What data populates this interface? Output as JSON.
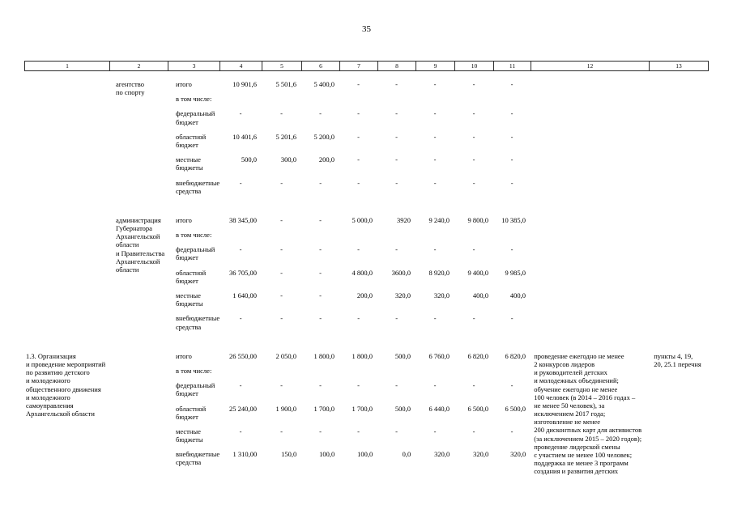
{
  "page": {
    "number": "35"
  },
  "table": {
    "columns": [
      "1",
      "2",
      "3",
      "4",
      "5",
      "6",
      "7",
      "8",
      "9",
      "10",
      "11",
      "12",
      "13"
    ],
    "groups": [
      {
        "activity": "",
        "executor": "агентство\nпо спорту",
        "indicators": "",
        "reference": "",
        "rows": [
          {
            "label": "итого",
            "values": [
              "10 901,6",
              "5 501,6",
              "5 400,0",
              "-",
              "-",
              "-",
              "-",
              "-"
            ]
          },
          {
            "label": "в том числе:",
            "values": [
              "",
              "",
              "",
              "",
              "",
              "",
              "",
              ""
            ]
          },
          {
            "label": "федеральный\nбюджет",
            "values": [
              "-",
              "-",
              "-",
              "-",
              "-",
              "-",
              "-",
              "-"
            ]
          },
          {
            "label": "областной\nбюджет",
            "values": [
              "10 401,6",
              "5 201,6",
              "5 200,0",
              "-",
              "-",
              "-",
              "-",
              "-"
            ]
          },
          {
            "label": "местные\nбюджеты",
            "values": [
              "500,0",
              "300,0",
              "200,0",
              "-",
              "-",
              "-",
              "-",
              "-"
            ]
          },
          {
            "label": "внебюджетные\nсредства",
            "values": [
              "-",
              "-",
              "-",
              "-",
              "-",
              "-",
              "-",
              "-"
            ]
          }
        ]
      },
      {
        "activity": "",
        "executor": "администрация\nГубернатора\nАрхангельской\nобласти\nи Правительства\nАрхангельской\nобласти",
        "indicators": "",
        "reference": "",
        "rows": [
          {
            "label": "итого",
            "values": [
              "38 345,00",
              "-",
              "-",
              "5 000,0",
              "3920",
              "9 240,0",
              "9 800,0",
              "10 385,0"
            ]
          },
          {
            "label": "в том числе:",
            "values": [
              "",
              "",
              "",
              "",
              "",
              "",
              "",
              ""
            ]
          },
          {
            "label": "федеральный\nбюджет",
            "values": [
              "-",
              "-",
              "-",
              "-",
              "-",
              "-",
              "-",
              "-"
            ]
          },
          {
            "label": "областной\nбюджет",
            "values": [
              "36 705,00",
              "-",
              "-",
              "4 800,0",
              "3600,0",
              "8 920,0",
              "9 400,0",
              "9 985,0"
            ]
          },
          {
            "label": "местные\nбюджеты",
            "values": [
              "1 640,00",
              "-",
              "-",
              "200,0",
              "320,0",
              "320,0",
              "400,0",
              "400,0"
            ]
          },
          {
            "label": "внебюджетные\nсредства",
            "values": [
              "-",
              "-",
              "-",
              "-",
              "-",
              "-",
              "-",
              "-"
            ]
          }
        ]
      },
      {
        "activity": "1.3.  Организация\nи проведение мероприятий\nпо развитию детского\nи молодежного\nобщественного движения\nи молодежного\nсамоуправления\nАрхангельской области",
        "executor": "",
        "indicators": "проведение ежегодно не менее\n2 конкурсов лидеров\nи руководителей детских\nи молодежных объединений;\nобучение ежегодно не менее\n100 человек (в 2014 – 2016 годах –\nне менее 50 человек), за\nисключением 2017 года;\nизготовление не менее\n200 дисконтных карт для активистов\n(за исключением 2015 – 2020 годов);\nпроведение лидерской смены\nс участием не менее 100 человек;\nподдержка не менее 3 программ\nсоздания и развития детских",
        "reference": "пункты 4, 19,\n20, 25.1 перечня",
        "rows": [
          {
            "label": "итого",
            "values": [
              "26 550,00",
              "2 050,0",
              "1 800,0",
              "1 800,0",
              "500,0",
              "6 760,0",
              "6 820,0",
              "6 820,0"
            ]
          },
          {
            "label": "в том числе:",
            "values": [
              "",
              "",
              "",
              "",
              "",
              "",
              "",
              ""
            ]
          },
          {
            "label": "федеральный\nбюджет",
            "values": [
              "-",
              "-",
              "-",
              "-",
              "-",
              "-",
              "-",
              "-"
            ]
          },
          {
            "label": "областной\nбюджет",
            "values": [
              "25 240,00",
              "1 900,0",
              "1 700,0",
              "1 700,0",
              "500,0",
              "6 440,0",
              "6 500,0",
              "6 500,0"
            ]
          },
          {
            "label": "местные\nбюджеты",
            "values": [
              "-",
              "-",
              "-",
              "-",
              "-",
              "-",
              "-",
              "-"
            ]
          },
          {
            "label": "внебюджетные\nсредства",
            "values": [
              "1 310,00",
              "150,0",
              "100,0",
              "100,0",
              "0,0",
              "320,0",
              "320,0",
              "320,0"
            ]
          }
        ]
      }
    ]
  }
}
